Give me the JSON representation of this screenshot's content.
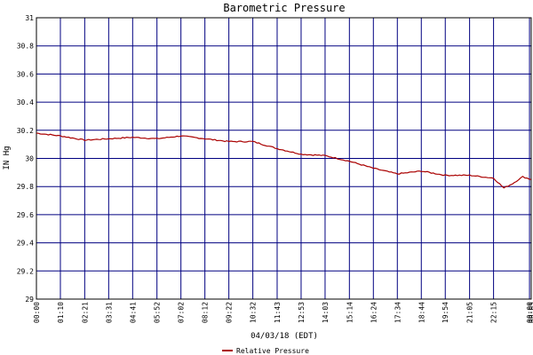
{
  "chart_data": {
    "type": "line",
    "title": "Barometric Pressure",
    "ylabel": "IN Hg",
    "xlabel": "04/03/18 (EDT)",
    "ylim": [
      29,
      31
    ],
    "y_ticks": [
      "31",
      "30.8",
      "30.6",
      "30.4",
      "30.2",
      "30",
      "29.8",
      "29.6",
      "29.4",
      "29.2",
      "29"
    ],
    "x_ticks": [
      "00:00",
      "01:10",
      "02:21",
      "03:31",
      "04:41",
      "05:52",
      "07:02",
      "08:12",
      "09:22",
      "10:32",
      "11:43",
      "12:53",
      "14:03",
      "15:14",
      "16:24",
      "17:34",
      "18:44",
      "19:54",
      "21:05",
      "22:15",
      "00:00",
      "00:05"
    ],
    "grid": true,
    "legend_position": "bottom-center",
    "colors": {
      "series": "#aa0000",
      "grid": "#000080",
      "frame": "#000000"
    },
    "series": [
      {
        "name": "Relative Pressure",
        "x": [
          "00:00",
          "01:10",
          "02:21",
          "03:31",
          "04:41",
          "05:52",
          "07:02",
          "08:12",
          "09:22",
          "10:32",
          "11:43",
          "12:53",
          "14:03",
          "15:14",
          "16:24",
          "17:34",
          "18:44",
          "19:54",
          "21:05",
          "22:15",
          "22:45",
          "23:10",
          "23:40",
          "00:05"
        ],
        "values": [
          30.18,
          30.16,
          30.13,
          30.14,
          30.15,
          30.14,
          30.16,
          30.14,
          30.12,
          30.12,
          30.07,
          30.03,
          30.02,
          29.98,
          29.93,
          29.89,
          29.91,
          29.88,
          29.88,
          29.86,
          29.79,
          29.82,
          29.87,
          29.85
        ]
      }
    ]
  }
}
